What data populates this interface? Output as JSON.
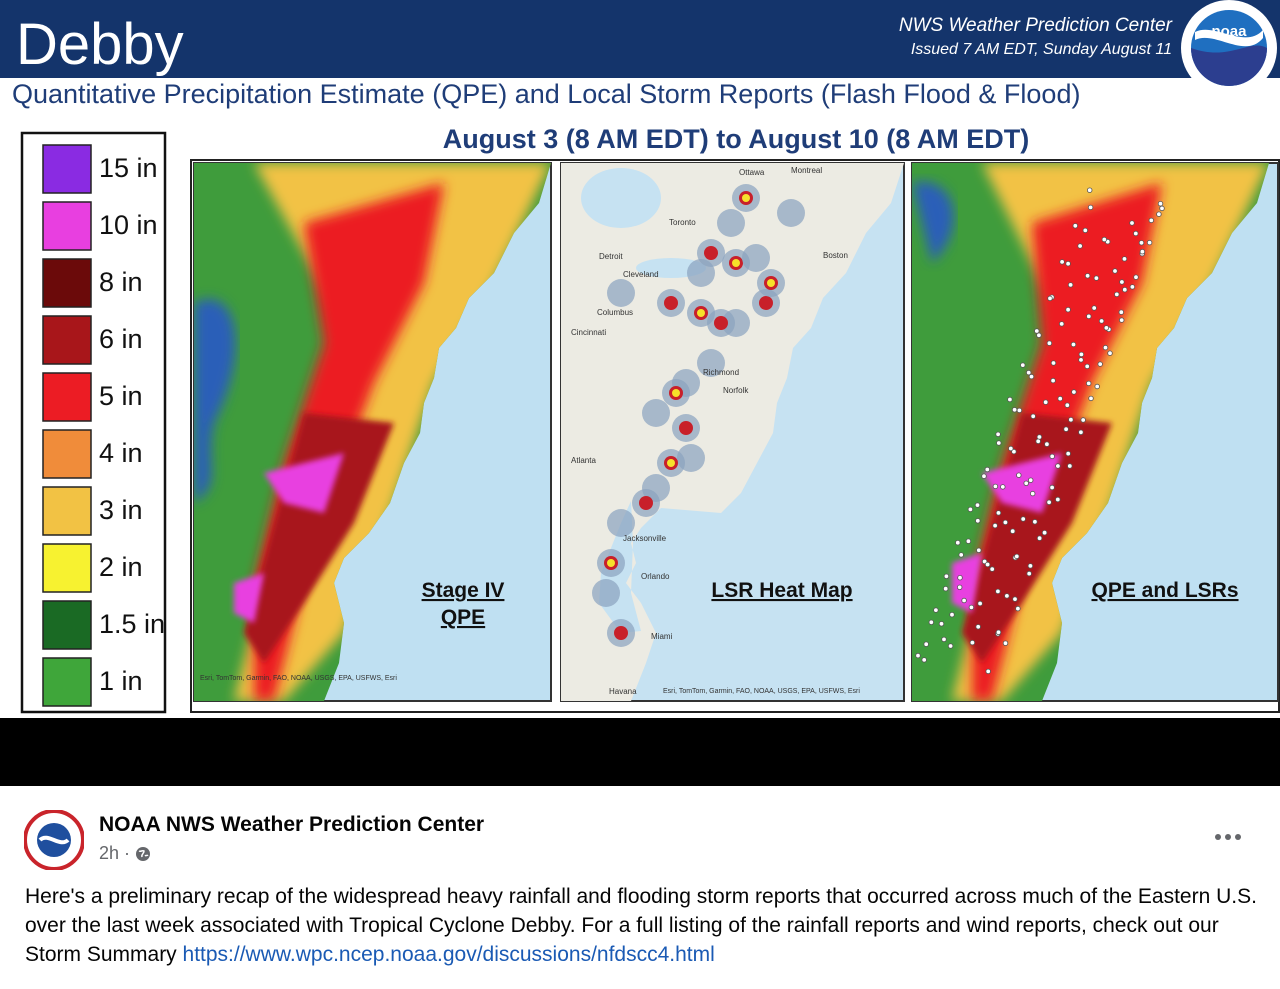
{
  "graphic": {
    "title": "Debby",
    "issuer": "NWS Weather Prediction Center",
    "issued": "Issued 7 AM EDT, Sunday August 11",
    "logo": "noaa",
    "subtitle": "Quantitative Precipitation Estimate (QPE) and Local Storm Reports (Flash Flood & Flood)",
    "period": "August 3 (8 AM EDT) to August 10 (8 AM EDT)",
    "legend": [
      {
        "label": "15 in",
        "color": "#8a2be2"
      },
      {
        "label": "10 in",
        "color": "#e83fe0"
      },
      {
        "label": "8 in",
        "color": "#6b0a0a"
      },
      {
        "label": "6 in",
        "color": "#a8161a"
      },
      {
        "label": "5 in",
        "color": "#ec1c24"
      },
      {
        "label": "4 in",
        "color": "#f08c3a"
      },
      {
        "label": "3 in",
        "color": "#f2c244"
      },
      {
        "label": "2 in",
        "color": "#f7f230"
      },
      {
        "label": "1.5 in",
        "color": "#1a6a24"
      },
      {
        "label": "1 in",
        "color": "#3fa63a"
      }
    ],
    "panels": [
      {
        "label": [
          "Stage IV",
          "QPE"
        ]
      },
      {
        "label": [
          "LSR Heat Map"
        ],
        "cities": [
          "Ottawa",
          "Montreal",
          "Toronto",
          "Boston",
          "Detroit",
          "Cleveland",
          "Columbus",
          "Cincinnati",
          "Richmond",
          "Norfolk",
          "Atlanta",
          "Jacksonville",
          "Orlando",
          "Miami",
          "Havana"
        ]
      },
      {
        "label": [
          "QPE and LSRs"
        ]
      }
    ],
    "attribution": "Esri, TomTom, Garmin, FAO, NOAA, USGS, EPA, USFWS, Esri"
  },
  "post": {
    "author": "NOAA NWS Weather Prediction Center",
    "time": "2h",
    "text": "Here's a preliminary recap of the widespread heavy rainfall and flooding storm reports that occurred across much of the Eastern U.S. over the last week associated with Tropical Cyclone Debby. For a full listing of the rainfall reports and wind reports, check out our Storm Summary ",
    "link": "https://www.wpc.ncep.noaa.gov/discussions/nfdscc4.html"
  }
}
